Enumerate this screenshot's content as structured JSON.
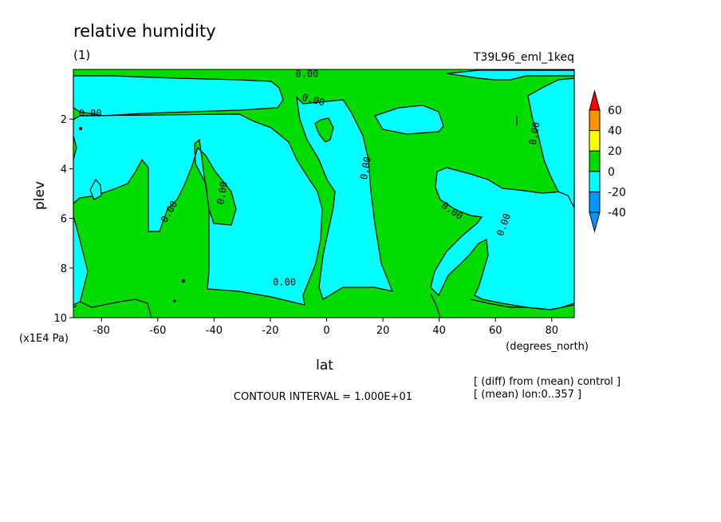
{
  "header": {
    "title": "relative humidity",
    "subtitle": "(1)",
    "experiment": "T39L96_eml_1keq"
  },
  "footer": {
    "contour_interval": "CONTOUR INTERVAL = 1.000E+01",
    "note_diff": "[ (diff) from (mean) control ]",
    "note_mean": "[ (mean) lon:0..357 ]"
  },
  "colors": {
    "cyan": "#00ffff",
    "green": "#00dc00",
    "blue": "#0096ff",
    "yellow": "#ffff00",
    "orange": "#ff9600",
    "red": "#ff0000"
  },
  "chart_data": {
    "type": "heatmap",
    "subtype": "latitude-pressure contour",
    "title": "relative humidity",
    "xlabel": "lat",
    "x_units": "(degrees_north)",
    "ylabel": "plev",
    "y_units": "(x1E4 Pa)",
    "xlim": [
      -90,
      88
    ],
    "ylim": [
      10,
      0
    ],
    "x_ticks": [
      -80,
      -60,
      -40,
      -20,
      0,
      20,
      40,
      60,
      80
    ],
    "x_tick_labels": [
      "-80",
      "-60",
      "-40",
      "-20",
      "0",
      "20",
      "40",
      "60",
      "80"
    ],
    "y_ticks": [
      2,
      4,
      6,
      8,
      10
    ],
    "y_tick_labels": [
      "2",
      "4",
      "6",
      "8",
      "10"
    ],
    "contour_labels": [
      {
        "text": "0.00",
        "lat": -84,
        "plev": 1.9
      },
      {
        "text": "0.00",
        "lat": -7,
        "plev": 0.3
      },
      {
        "text": "0.00",
        "lat": -5,
        "plev": 1.35
      },
      {
        "text": "0.00",
        "lat": -55,
        "plev": 5.8
      },
      {
        "text": "0.00",
        "lat": -36,
        "plev": 5.0
      },
      {
        "text": "0.00",
        "lat": 15,
        "plev": 4.0
      },
      {
        "text": "0.00",
        "lat": 44,
        "plev": 5.8
      },
      {
        "text": "0.00",
        "lat": 64,
        "plev": 6.3
      },
      {
        "text": "0.00",
        "lat": 75,
        "plev": 2.6
      },
      {
        "text": "0.00",
        "lat": -15,
        "plev": 8.7
      }
    ],
    "colorbar": {
      "levels": [
        "60",
        "40",
        "20",
        "0",
        "-20",
        "-40"
      ],
      "bins": [
        {
          "range": "<-40",
          "color": "#0096ff"
        },
        {
          "range": "-40..-20",
          "color": "#0096ff"
        },
        {
          "range": "-20..0",
          "color": "#00ffff"
        },
        {
          "range": "0..20",
          "color": "#00dc00"
        },
        {
          "range": "20..40",
          "color": "#ffff00"
        },
        {
          "range": "40..60",
          "color": "#ff9600"
        },
        {
          "range": ">60",
          "color": "#ff0000"
        }
      ]
    },
    "contour_interval": 10
  }
}
